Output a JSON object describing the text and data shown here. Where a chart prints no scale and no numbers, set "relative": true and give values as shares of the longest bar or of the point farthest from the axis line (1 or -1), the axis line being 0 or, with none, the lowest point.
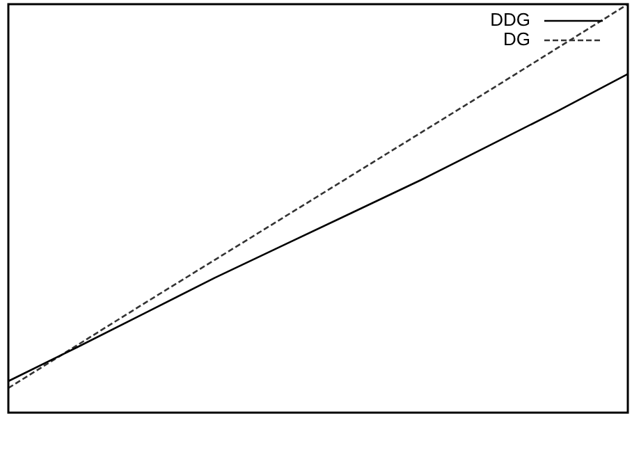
{
  "chart_data": {
    "type": "line",
    "relative": true,
    "categories": [
      null,
      null,
      null,
      null,
      null,
      null,
      null,
      null,
      null,
      null
    ],
    "legend": "top right",
    "marker": "none",
    "grid": false,
    "series": [
      {
        "name": "DDG",
        "color": "#000000",
        "line_style": "solid",
        "values": [
          0.077,
          0.16,
          0.245,
          0.33,
          0.41,
          0.49,
          0.57,
          0.655,
          0.74,
          0.829
        ]
      },
      {
        "name": "DG",
        "color": "#333333",
        "line_style": "dashed",
        "values": [
          0.06,
          0.165,
          0.27,
          0.374,
          0.478,
          0.582,
          0.686,
          0.79,
          0.895,
          1.0
        ]
      }
    ]
  }
}
